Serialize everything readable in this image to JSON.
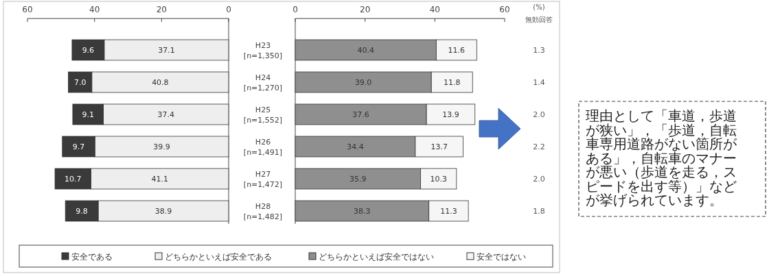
{
  "chart_data": [
    {
      "type": "bar",
      "orientation": "horizontal",
      "stacked": true,
      "categories": [
        "H23\n[n=1,350]",
        "H24\n[n=1,270]",
        "H25\n[n=1,552]",
        "H26\n[n=1,491]",
        "H27\n[n=1,472]",
        "H28\n[n=1,482]"
      ],
      "xlim": [
        60,
        0
      ],
      "xticks": [
        60,
        40,
        20,
        0
      ],
      "legend": "bottom",
      "series": [
        {
          "name": "どちらかといえば安全である",
          "color": "#eeeeee",
          "values": [
            37.1,
            40.8,
            37.4,
            39.9,
            41.1,
            38.9
          ],
          "value_labels": [
            "37.1",
            "40.8",
            "37.4",
            "39.9",
            "41.1",
            "38.9"
          ]
        },
        {
          "name": "安全である",
          "color": "#3a3a3a",
          "values": [
            9.6,
            7.0,
            9.1,
            9.7,
            10.7,
            9.8
          ],
          "value_labels": [
            "9.6",
            "7.0",
            "9.1",
            "9.7",
            "10.7",
            "9.8"
          ]
        }
      ]
    },
    {
      "type": "bar",
      "orientation": "horizontal",
      "stacked": true,
      "categories": [
        null,
        null,
        null,
        null,
        null,
        null
      ],
      "tick_labels": "x",
      "xlim": [
        0,
        60
      ],
      "xticks": [
        0,
        20,
        40,
        60
      ],
      "legend": "bottom",
      "series": [
        {
          "name": "どちらかといえば安全ではない",
          "color": "#8f8f8f",
          "values": [
            40.4,
            39.0,
            37.6,
            34.4,
            35.9,
            38.3
          ],
          "value_labels": [
            "40.4",
            "39.0",
            "37.6",
            "34.4",
            "35.9",
            "38.3"
          ]
        },
        {
          "name": "安全ではない",
          "color": "#f6f6f6",
          "values": [
            11.6,
            11.8,
            13.9,
            13.7,
            10.3,
            11.3
          ],
          "value_labels": [
            "11.6",
            "11.8",
            "13.9",
            "13.7",
            "10.3",
            "11.3"
          ]
        }
      ]
    },
    {
      "type": "other",
      "title": "無効回答",
      "subtitle": "(%)",
      "annotations": [
        "1.3",
        "1.4",
        "2.0",
        "2.2",
        "2.0",
        "1.8"
      ]
    },
    {
      "type": "other",
      "annotations": [
        "理由として「車道，歩道が狭い」，「歩道，自転車専用道路がない箇所がある」，自転車のマナーが悪い（歩道を走る，スピードを出す等）」などが挙げられています。"
      ]
    }
  ]
}
